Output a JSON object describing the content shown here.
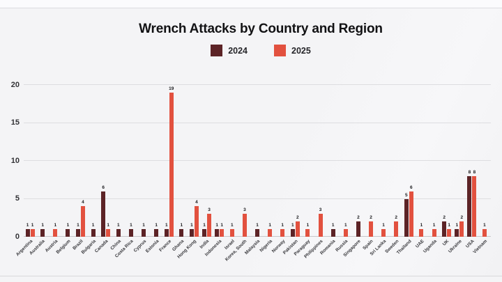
{
  "page": {
    "background": "#f4f4f6"
  },
  "chart_data": {
    "type": "bar",
    "title": "Wrench Attacks by Country and Region",
    "legend_position": "top",
    "grid": true,
    "value_labels": true,
    "ylim": [
      0,
      20
    ],
    "yticks": [
      0,
      5,
      10,
      15,
      20
    ],
    "categories": [
      "Argentina",
      "Australia",
      "Austria",
      "Belgium",
      "Brazil",
      "Bulgaria",
      "Canada",
      "China",
      "Costa Rica",
      "Cyprus",
      "Estonia",
      "France",
      "Ghana",
      "Hong Kong",
      "India",
      "Indonesia",
      "Israel",
      "Korea, South",
      "Malaysia",
      "Nigeria",
      "Norway",
      "Pakistan",
      "Paraguay",
      "Philippines",
      "Romania",
      "Russia",
      "Singapore",
      "Spain",
      "Sri Lanka",
      "Sweden",
      "Thailand",
      "UAE",
      "Uganda",
      "UK",
      "Ukraine",
      "USA",
      "Vietnam"
    ],
    "series": [
      {
        "name": "2024",
        "color": "#5c2326",
        "values": [
          1,
          1,
          0,
          1,
          1,
          1,
          6,
          1,
          1,
          1,
          1,
          1,
          1,
          1,
          1,
          1,
          0,
          0,
          1,
          0,
          0,
          1,
          0,
          0,
          1,
          0,
          2,
          0,
          0,
          0,
          5,
          0,
          0,
          2,
          1,
          8,
          0
        ]
      },
      {
        "name": "2025",
        "color": "#e2513f",
        "values": [
          1,
          0,
          1,
          0,
          4,
          0,
          1,
          0,
          0,
          0,
          0,
          19,
          0,
          4,
          3,
          1,
          1,
          3,
          0,
          1,
          1,
          2,
          1,
          3,
          0,
          1,
          0,
          2,
          1,
          2,
          6,
          1,
          1,
          1,
          2,
          8,
          1
        ]
      }
    ]
  }
}
